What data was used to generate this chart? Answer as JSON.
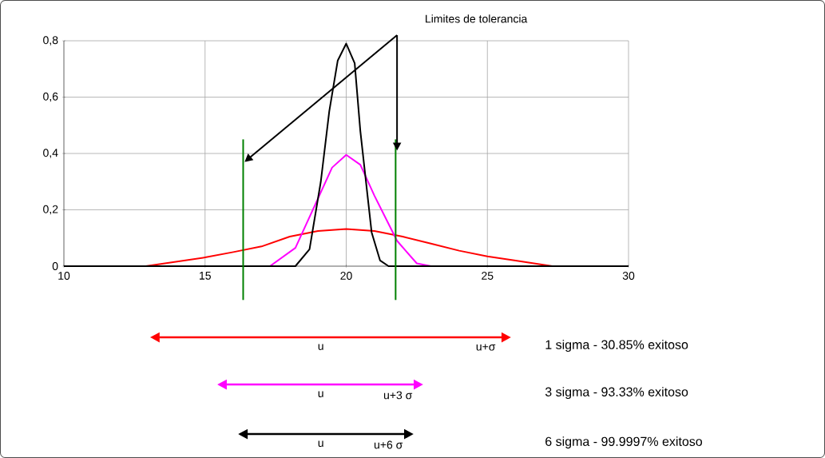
{
  "chart_data": {
    "type": "line",
    "series": [
      {
        "color": "#ff0000",
        "x": [
          10,
          12.9,
          15,
          16,
          17,
          18,
          19,
          20,
          21,
          22,
          23,
          24,
          25,
          26,
          27.3,
          30
        ],
        "values": [
          0,
          0,
          0.031,
          0.05,
          0.07,
          0.105,
          0.125,
          0.132,
          0.125,
          0.105,
          0.08,
          0.055,
          0.035,
          0.02,
          0,
          0
        ]
      },
      {
        "color": "#ff00ff",
        "x": [
          16.7,
          17.3,
          18.2,
          19,
          19.5,
          20,
          20.5,
          21,
          21.8,
          22.5,
          23
        ],
        "values": [
          0,
          0,
          0.065,
          0.24,
          0.35,
          0.395,
          0.36,
          0.25,
          0.09,
          0.01,
          0
        ]
      },
      {
        "color": "#000000",
        "x": [
          10,
          18.2,
          18.7,
          19.1,
          19.4,
          19.7,
          20,
          20.3,
          20.5,
          20.9,
          21.2,
          21.5,
          30
        ],
        "values": [
          0,
          0,
          0.06,
          0.3,
          0.55,
          0.73,
          0.79,
          0.72,
          0.48,
          0.12,
          0.02,
          0,
          0
        ]
      }
    ],
    "xlim": [
      10,
      30
    ],
    "ylim": [
      0,
      0.8
    ],
    "xticks": [
      10,
      15,
      20,
      25,
      30
    ],
    "yticks": [
      0,
      {
        "value": 0.2,
        "label": "0,2"
      },
      {
        "value": 0.4,
        "label": "0,4"
      },
      {
        "value": 0.6,
        "label": "0,6"
      },
      {
        "value": 0.8,
        "label": "0,8"
      }
    ],
    "grid": true,
    "ref_lines": [
      {
        "axis": "x",
        "value": 16.35,
        "color": "#008000"
      },
      {
        "axis": "x",
        "value": 21.75,
        "color": "#008000"
      }
    ],
    "annotations": [
      "Limites de tolerancia",
      "u",
      "u+σ",
      "1 sigma - 30.85% exitoso",
      "u",
      "u+3 σ",
      "3 sigma - 93.33% exitoso",
      "u",
      "u+6 σ",
      "6 sigma - 99.9997% exitoso"
    ]
  }
}
